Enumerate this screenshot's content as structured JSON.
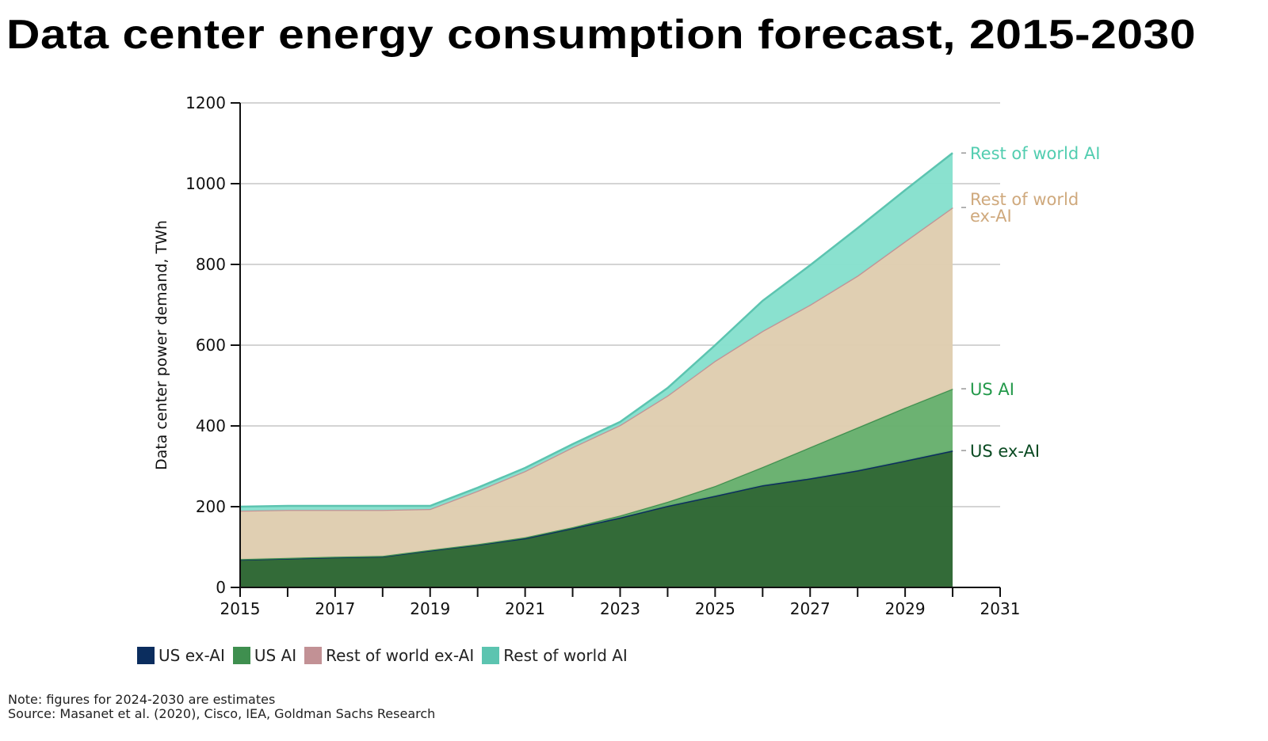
{
  "chart_data": {
    "type": "area",
    "stacked": true,
    "title": "Data center energy consumption forecast, 2015-2030",
    "xlabel": "",
    "ylabel": "Data center power demand, TWh",
    "xlim": [
      2015,
      2031
    ],
    "ylim": [
      0,
      1200
    ],
    "xticks": [
      "2015",
      "2017",
      "2019",
      "2021",
      "2023",
      "2025",
      "2027",
      "2029",
      "2031"
    ],
    "yticks": [
      "0",
      "200",
      "400",
      "600",
      "800",
      "1000",
      "1200"
    ],
    "grid": true,
    "legend_position": "bottom",
    "x": [
      2015,
      2016,
      2017,
      2018,
      2019,
      2020,
      2021,
      2022,
      2023,
      2024,
      2025,
      2026,
      2027,
      2028,
      2029,
      2030
    ],
    "series": [
      {
        "name": "US ex-AI",
        "color": "#0b2d5e",
        "fill": "#2c6632",
        "label_color": "#0a4a22",
        "end_label": "US ex-AI",
        "values": [
          69,
          72,
          75,
          77,
          92,
          106,
          122,
          147,
          173,
          202,
          227,
          253,
          270,
          290,
          314,
          339
        ]
      },
      {
        "name": "US AI",
        "color": "#3f8f4f",
        "fill": "#67b06d",
        "label_color": "#23994a",
        "end_label": "US AI",
        "values": [
          1,
          1,
          1,
          1,
          1,
          1,
          2,
          2,
          5,
          10,
          24,
          45,
          77,
          106,
          131,
          153
        ]
      },
      {
        "name": "Rest of world ex-AI",
        "color": "#c29195",
        "fill": "#dfcdb0",
        "label_color": "#cfa97d",
        "end_label": "Rest of world ex-AI",
        "values": [
          120,
          119,
          116,
          114,
          101,
          132,
          164,
          198,
          224,
          263,
          310,
          337,
          353,
          376,
          412,
          449
        ]
      },
      {
        "name": "Rest of world AI",
        "color": "#5cc4b0",
        "fill": "#86e0cd",
        "label_color": "#52cdb0",
        "end_label": "Rest of world AI",
        "values": [
          10,
          10,
          10,
          10,
          8,
          8,
          8,
          8,
          8,
          19,
          39,
          75,
          98,
          118,
          127,
          135
        ]
      }
    ]
  },
  "notes": {
    "note": "Note: figures for 2024-2030 are estimates",
    "source": "Source: Masanet et al. (2020), Cisco, IEA, Goldman Sachs Research"
  }
}
